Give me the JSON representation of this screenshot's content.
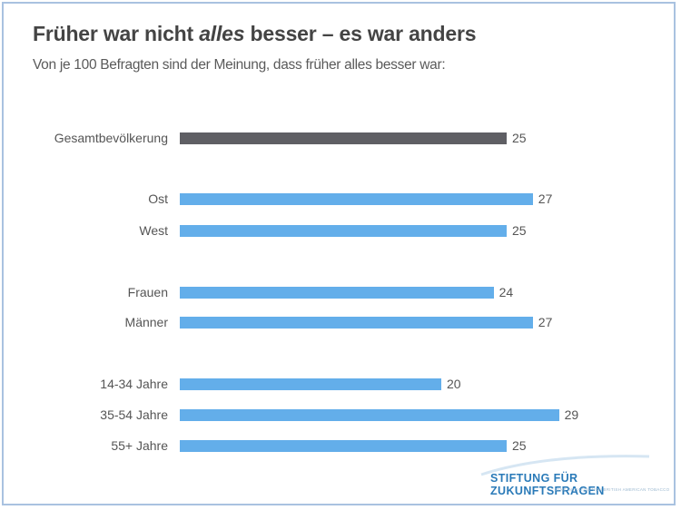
{
  "chart_data": {
    "type": "bar",
    "orientation": "horizontal",
    "title_parts": [
      "Früher war nicht ",
      "alles",
      " besser – es war anders"
    ],
    "title": "Früher war nicht alles besser – es war anders",
    "subtitle": "Von je 100 Befragten sind der Meinung, dass früher alles besser war:",
    "categories": [
      "Gesamtbevölkerung",
      "Ost",
      "West",
      "Frauen",
      "Männer",
      "14-34 Jahre",
      "35-54 Jahre",
      "55+ Jahre"
    ],
    "values": [
      25,
      27,
      25,
      24,
      27,
      20,
      29,
      25
    ],
    "groups": [
      [
        0
      ],
      [
        1,
        2
      ],
      [
        3,
        4
      ],
      [
        5,
        6,
        7
      ]
    ],
    "colors": {
      "total": "#5f5f64",
      "segment": "#63aeea"
    },
    "xlim": [
      0,
      30
    ],
    "grid": false,
    "legend": "none"
  },
  "branding": {
    "logo_text": "STIFTUNG FÜR ZUKUNFTSFRAGEN",
    "logo_subtext": "EINE INITIATIVE VON BRITISH AMERICAN TOBACCO"
  }
}
